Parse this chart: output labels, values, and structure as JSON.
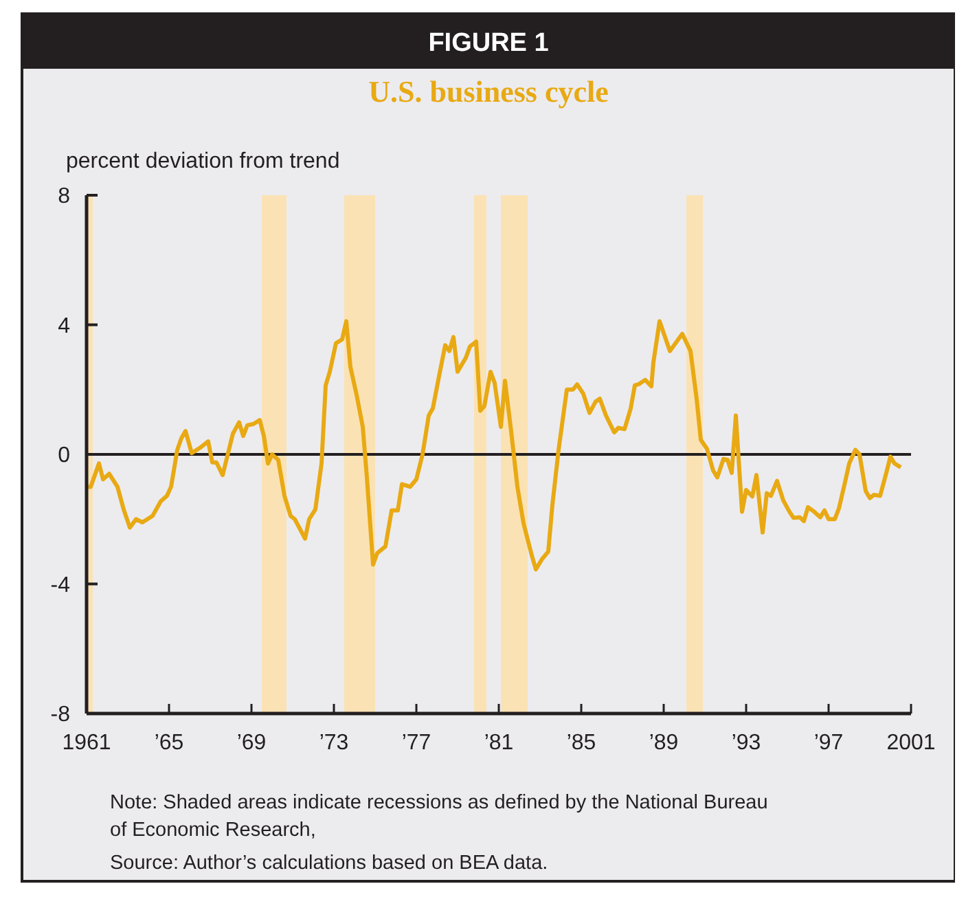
{
  "chart_data": {
    "type": "line",
    "title": "FIGURE 1",
    "subtitle": "U.S. business cycle",
    "ylabel": "percent deviation from trend",
    "x": [
      1961.0,
      1961.2,
      1961.6,
      1961.8,
      1962.1,
      1962.5,
      1962.8,
      1963.1,
      1963.4,
      1963.7,
      1964.2,
      1964.6,
      1964.9,
      1965.1,
      1965.4,
      1965.6,
      1965.8,
      1966.1,
      1966.5,
      1966.9,
      1967.1,
      1967.3,
      1967.6,
      1967.8,
      1968.1,
      1968.4,
      1968.6,
      1968.8,
      1969.1,
      1969.4,
      1969.6,
      1969.8,
      1970.0,
      1970.3,
      1970.6,
      1970.9,
      1971.1,
      1971.6,
      1971.8,
      1972.1,
      1972.4,
      1972.6,
      1972.8,
      1973.1,
      1973.4,
      1973.6,
      1973.8,
      1974.1,
      1974.4,
      1974.6,
      1974.9,
      1975.1,
      1975.5,
      1975.8,
      1976.1,
      1976.3,
      1976.7,
      1977.0,
      1977.3,
      1977.6,
      1977.8,
      1978.1,
      1978.4,
      1978.6,
      1978.8,
      1979.0,
      1979.4,
      1979.6,
      1979.9,
      1980.1,
      1980.3,
      1980.6,
      1980.8,
      1981.1,
      1981.3,
      1981.6,
      1981.9,
      1982.2,
      1982.6,
      1982.8,
      1983.1,
      1983.4,
      1983.6,
      1983.9,
      1984.3,
      1984.6,
      1984.8,
      1985.1,
      1985.4,
      1985.7,
      1985.9,
      1986.2,
      1986.6,
      1986.8,
      1987.1,
      1987.4,
      1987.6,
      1987.8,
      1988.1,
      1988.4,
      1988.5,
      1988.8,
      1989.3,
      1989.9,
      1990.3,
      1990.6,
      1990.8,
      1991.1,
      1991.4,
      1991.6,
      1991.9,
      1992.1,
      1992.3,
      1992.5,
      1992.8,
      1993.0,
      1993.3,
      1993.5,
      1993.8,
      1994.0,
      1994.2,
      1994.5,
      1994.8,
      1995.1,
      1995.3,
      1995.6,
      1995.8,
      1996.0,
      1996.3,
      1996.6,
      1996.8,
      1997.0,
      1997.3,
      1997.5,
      1997.8,
      1998.0,
      1998.3,
      1998.5,
      1998.8,
      1999.0,
      1999.2,
      1999.5,
      1999.8,
      2000.0,
      2000.2,
      2000.5
    ],
    "series": [
      {
        "color": "#e8a913",
        "values": [
          -1.0,
          -1.0,
          -0.28,
          -0.77,
          -0.6,
          -1.0,
          -1.7,
          -2.26,
          -2.0,
          -2.1,
          -1.9,
          -1.45,
          -1.28,
          -1.0,
          0.14,
          0.5,
          0.72,
          0.04,
          0.2,
          0.4,
          -0.25,
          -0.25,
          -0.64,
          -0.13,
          0.64,
          0.99,
          0.57,
          0.9,
          0.94,
          1.06,
          0.57,
          -0.28,
          0.0,
          -0.17,
          -1.28,
          -1.9,
          -2.0,
          -2.6,
          -2.0,
          -1.7,
          -0.28,
          2.13,
          2.55,
          3.43,
          3.55,
          4.11,
          2.7,
          1.84,
          0.85,
          -0.71,
          -3.4,
          -3.05,
          -2.84,
          -1.73,
          -1.73,
          -0.92,
          -1.0,
          -0.77,
          0.0,
          1.2,
          1.42,
          2.41,
          3.37,
          3.19,
          3.62,
          2.55,
          2.98,
          3.33,
          3.48,
          1.35,
          1.49,
          2.55,
          2.2,
          0.85,
          2.27,
          0.71,
          -0.99,
          -2.13,
          -3.12,
          -3.55,
          -3.23,
          -3.0,
          -1.56,
          0.14,
          2.0,
          2.0,
          2.16,
          1.87,
          1.28,
          1.63,
          1.72,
          1.2,
          0.68,
          0.82,
          0.78,
          1.42,
          2.13,
          2.17,
          2.3,
          2.1,
          2.84,
          4.11,
          3.19,
          3.72,
          3.19,
          1.7,
          0.45,
          0.17,
          -0.5,
          -0.71,
          -0.14,
          -0.17,
          -0.57,
          1.2,
          -1.77,
          -1.1,
          -1.3,
          -0.64,
          -2.41,
          -1.2,
          -1.28,
          -0.82,
          -1.42,
          -1.77,
          -1.96,
          -1.94,
          -2.06,
          -1.63,
          -1.77,
          -1.94,
          -1.73,
          -2.0,
          -2.0,
          -1.67,
          -0.85,
          -0.28,
          0.14,
          0.0,
          -1.13,
          -1.35,
          -1.25,
          -1.28,
          -0.57,
          -0.07,
          -0.28,
          -0.4
        ]
      }
    ],
    "xlim": [
      1961,
      2001
    ],
    "xticks": [
      1961,
      {
        "value": 1965,
        "label": "’65"
      },
      {
        "value": 1969,
        "label": "’69"
      },
      {
        "value": 1973,
        "label": "’73"
      },
      {
        "value": 1977,
        "label": "’77"
      },
      {
        "value": 1981,
        "label": "’81"
      },
      {
        "value": 1985,
        "label": "’85"
      },
      {
        "value": 1989,
        "label": "’89"
      },
      {
        "value": 1993,
        "label": "’93"
      },
      {
        "value": 1997,
        "label": "’97"
      },
      2001
    ],
    "ylim": [
      -8,
      8
    ],
    "yticks": [
      8,
      4,
      0,
      -4,
      -8
    ],
    "ref_lines": [
      {
        "axis": "y",
        "value": 0,
        "color": "#231f20"
      }
    ],
    "bands": [
      {
        "axis": "x",
        "from": 1961.0,
        "to": 1961.3,
        "color": "#fbe2b4"
      },
      {
        "axis": "x",
        "from": 1969.5,
        "to": 1970.7,
        "color": "#fbe2b4"
      },
      {
        "axis": "x",
        "from": 1973.5,
        "to": 1975.0,
        "color": "#fbe2b4"
      },
      {
        "axis": "x",
        "from": 1979.8,
        "to": 1980.4,
        "color": "#fbe2b4"
      },
      {
        "axis": "x",
        "from": 1981.1,
        "to": 1982.4,
        "color": "#fbe2b4"
      },
      {
        "axis": "x",
        "from": 1990.1,
        "to": 1990.9,
        "color": "#fbe2b4"
      }
    ],
    "grid": false,
    "marker": "none",
    "line_style": "solid",
    "annotations": [
      "Note: Shaded areas indicate recessions as defined by the National Bureau of Economic Research,",
      "Source: Author’s calculations based on BEA data."
    ]
  }
}
